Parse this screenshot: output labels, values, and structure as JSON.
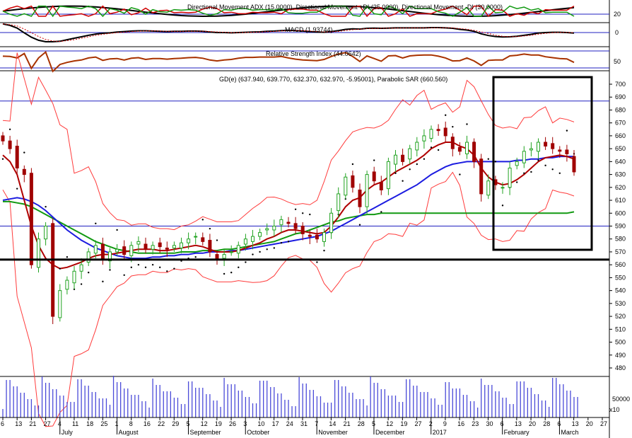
{
  "chart_data": {
    "type": "candlestick",
    "panels": {
      "adx": {
        "title": "Directional Movement ADX (15.0000), Directional Movement +DI (25.0000), Directional Movement -DI (30.0000)",
        "ylabel": "20",
        "level": 20
      },
      "macd": {
        "title": "MACD (1.93744)",
        "ylabel": "0"
      },
      "rsi": {
        "title": "Relative Strength Index (44.0642)",
        "ylabel": "50"
      },
      "price": {
        "title": "GD(e) (637.940, 639.770, 632.370, 632.970, -5.95001), Parabolic SAR (660.560)",
        "yticks": [
          480,
          490,
          500,
          510,
          520,
          530,
          540,
          550,
          560,
          570,
          580,
          590,
          600,
          610,
          620,
          630,
          640,
          650,
          660,
          670,
          680,
          690,
          700
        ],
        "ylim": [
          473,
          710
        ],
        "hlines": [
          687,
          590
        ],
        "support": 564
      },
      "volume": {
        "ytick": "50000",
        "multiplier": "x10"
      }
    },
    "x_ticks": [
      "6",
      "13",
      "21",
      "27",
      "4",
      "11",
      "18",
      "25",
      "1",
      "8",
      "16",
      "22",
      "29",
      "5",
      "12",
      "19",
      "26",
      "3",
      "10",
      "17",
      "24",
      "31",
      "7",
      "14",
      "21",
      "28",
      "5",
      "12",
      "19",
      "27",
      "2",
      "9",
      "16",
      "23",
      "30",
      "6",
      "13",
      "20",
      "28",
      "6",
      "13",
      "20",
      "27"
    ],
    "months": [
      "July",
      "August",
      "September",
      "October",
      "November",
      "December",
      "2017",
      "February",
      "March"
    ],
    "price_series": {
      "close": [
        656,
        650,
        635,
        630,
        560,
        580,
        590,
        520,
        540,
        548,
        555,
        560,
        570,
        575,
        565,
        570,
        572,
        568,
        575,
        578,
        572,
        575,
        574,
        572,
        575,
        577,
        580,
        582,
        578,
        570,
        565,
        568,
        570,
        575,
        580,
        582,
        585,
        588,
        590,
        595,
        592,
        588,
        584,
        582,
        580,
        585,
        600,
        615,
        628,
        620,
        605,
        630,
        625,
        618,
        640,
        645,
        640,
        650,
        655,
        660,
        665,
        664,
        660,
        650,
        648,
        655,
        640,
        615,
        625,
        622,
        620,
        635,
        640,
        648,
        650,
        655,
        652,
        650,
        648,
        646,
        632
      ],
      "sma_short": [
        645,
        640,
        630,
        610,
        590,
        575,
        565,
        560,
        557,
        558,
        560,
        562,
        565,
        567,
        568,
        568,
        569,
        570,
        571,
        572,
        572,
        572,
        571,
        571,
        572,
        573,
        574,
        575,
        574,
        572,
        570,
        570,
        570,
        571,
        573,
        575,
        577,
        580,
        582,
        585,
        587,
        587,
        586,
        585,
        584,
        585,
        590,
        597,
        605,
        610,
        612,
        618,
        622,
        624,
        628,
        632,
        635,
        638,
        641,
        645,
        650,
        653,
        655,
        655,
        652,
        650,
        645,
        635,
        628,
        624,
        622,
        623,
        626,
        630,
        635,
        640,
        643,
        644,
        645,
        644,
        642
      ],
      "sma_mid": [
        610,
        611,
        612,
        611,
        609,
        606,
        602,
        597,
        592,
        587,
        583,
        579,
        576,
        573,
        571,
        569,
        567,
        566,
        565,
        565,
        565,
        566,
        566,
        567,
        567,
        568,
        568,
        569,
        569,
        570,
        570,
        570,
        571,
        571,
        572,
        573,
        574,
        575,
        576,
        577,
        578,
        579,
        580,
        581,
        582,
        584,
        586,
        589,
        592,
        595,
        598,
        601,
        604,
        607,
        610,
        613,
        616,
        619,
        622,
        626,
        630,
        633,
        636,
        638,
        639,
        640,
        640,
        640,
        640,
        640,
        640,
        640,
        641,
        641,
        642,
        642,
        643,
        643,
        644,
        644,
        644
      ],
      "sma_long": [
        609,
        609,
        608,
        607,
        605,
        602,
        599,
        596,
        593,
        590,
        587,
        584,
        581,
        578,
        576,
        574,
        572,
        571,
        570,
        569,
        569,
        569,
        569,
        569,
        569,
        570,
        570,
        570,
        571,
        571,
        571,
        572,
        572,
        573,
        574,
        575,
        576,
        577,
        578,
        580,
        582,
        584,
        585,
        587,
        589,
        591,
        593,
        594,
        596,
        597,
        598,
        599,
        599,
        600,
        600,
        600,
        600,
        600,
        600,
        600,
        600,
        600,
        600,
        600,
        600,
        600,
        600,
        600,
        600,
        600,
        600,
        600,
        600,
        600,
        600,
        600,
        600,
        600,
        600,
        600,
        601
      ]
    },
    "colors": {
      "bull": "#22a322",
      "bear": "#a00000",
      "sma_short": "#b00000",
      "sma_mid": "#1c1ce0",
      "sma_long": "#119911",
      "bollinger": "#ff3b3b",
      "guide": "#2020c0",
      "volume": "#4a4ad8"
    }
  }
}
